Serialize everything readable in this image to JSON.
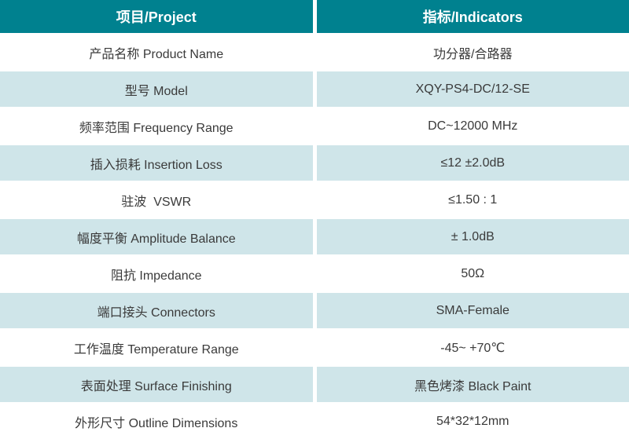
{
  "table": {
    "header": {
      "project": "项目/Project",
      "indicators": "指标/Indicators"
    },
    "rows": [
      {
        "label": "产品名称 Product Name",
        "value": "功分器/合路器"
      },
      {
        "label": "型号 Model",
        "value": "XQY-PS4-DC/12-SE"
      },
      {
        "label": "频率范围 Frequency Range",
        "value": "DC~12000 MHz"
      },
      {
        "label": "插入损耗 Insertion Loss",
        "value": "≤12 ±2.0dB"
      },
      {
        "label": "驻波  VSWR",
        "value": "≤1.50 : 1"
      },
      {
        "label": "幅度平衡 Amplitude Balance",
        "value": "± 1.0dB"
      },
      {
        "label": "阻抗 Impedance",
        "value": "50Ω"
      },
      {
        "label": "端口接头 Connectors",
        "value": "SMA-Female"
      },
      {
        "label": "工作温度 Temperature Range",
        "value": "-45~ +70℃"
      },
      {
        "label": "表面处理 Surface Finishing",
        "value": "黑色烤漆 Black Paint"
      },
      {
        "label": "外形尺寸 Outline Dimensions",
        "value": "54*32*12mm"
      }
    ],
    "colors": {
      "header_bg": "#00818F",
      "header_text": "#FFFFFF",
      "alt_row_bg": "#CFE5E9",
      "row_bg": "#FFFFFF",
      "body_text": "#3A3A3A",
      "divider": "#FFFFFF"
    }
  }
}
